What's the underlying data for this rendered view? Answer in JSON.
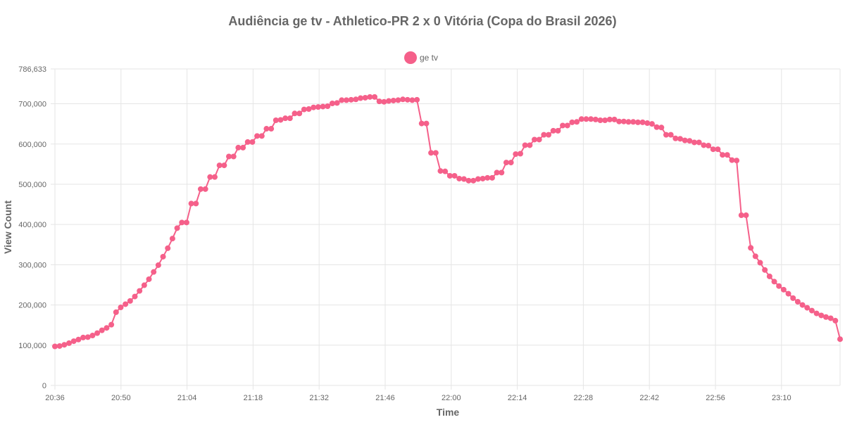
{
  "chart_data": {
    "type": "line",
    "title": "Audiência ge tv - Athletico-PR 2 x 0 Vitória (Copa do Brasil 2026)",
    "xlabel": "Time",
    "ylabel": "View Count",
    "ylim": [
      0,
      786633
    ],
    "y_ticks": [
      "0",
      "100,000",
      "200,000",
      "300,000",
      "400,000",
      "500,000",
      "600,000",
      "700,000",
      "786,633"
    ],
    "x_ticks": [
      "20:36",
      "20:50",
      "21:04",
      "21:18",
      "21:32",
      "21:46",
      "22:00",
      "22:14",
      "22:28",
      "22:42",
      "22:56",
      "23:10"
    ],
    "x_start": "20:36",
    "grid": true,
    "legend_position": "top-center",
    "color": "#f5608a",
    "series": [
      {
        "name": "ge tv",
        "values": [
          97000,
          98000,
          101000,
          105000,
          110000,
          114000,
          119000,
          120000,
          124000,
          130000,
          137000,
          143000,
          151000,
          182000,
          194000,
          202000,
          210000,
          221000,
          235000,
          249000,
          264000,
          282000,
          299000,
          320000,
          341000,
          365000,
          391000,
          405000,
          405000,
          452000,
          452000,
          488000,
          488000,
          518000,
          518000,
          547000,
          547000,
          569000,
          569000,
          591000,
          591000,
          605000,
          605000,
          620000,
          620000,
          638000,
          638000,
          659000,
          660000,
          664000,
          664000,
          676000,
          676000,
          686000,
          687000,
          691000,
          692000,
          693000,
          694000,
          701000,
          702000,
          709000,
          709000,
          710000,
          711000,
          714000,
          715000,
          717000,
          717000,
          706000,
          705000,
          707000,
          708000,
          709000,
          711000,
          710000,
          709000,
          710000,
          651000,
          651000,
          578000,
          578000,
          533000,
          532000,
          521000,
          521000,
          514000,
          513000,
          509000,
          509000,
          513000,
          514000,
          516000,
          516000,
          529000,
          529000,
          554000,
          554000,
          575000,
          576000,
          597000,
          597000,
          611000,
          611000,
          623000,
          623000,
          633000,
          633000,
          646000,
          646000,
          654000,
          655000,
          662000,
          662000,
          662000,
          661000,
          659000,
          659000,
          661000,
          661000,
          656000,
          656000,
          655000,
          655000,
          654000,
          654000,
          652000,
          650000,
          642000,
          641000,
          623000,
          623000,
          614000,
          613000,
          609000,
          608000,
          604000,
          604000,
          597000,
          596000,
          587000,
          587000,
          573000,
          573000,
          560000,
          559000,
          423000,
          423000,
          342000,
          321000,
          305000,
          287000,
          271000,
          258000,
          247000,
          238000,
          228000,
          217000,
          208000,
          200000,
          193000,
          186000,
          179000,
          174000,
          170000,
          167000,
          161000,
          115000
        ]
      }
    ]
  }
}
